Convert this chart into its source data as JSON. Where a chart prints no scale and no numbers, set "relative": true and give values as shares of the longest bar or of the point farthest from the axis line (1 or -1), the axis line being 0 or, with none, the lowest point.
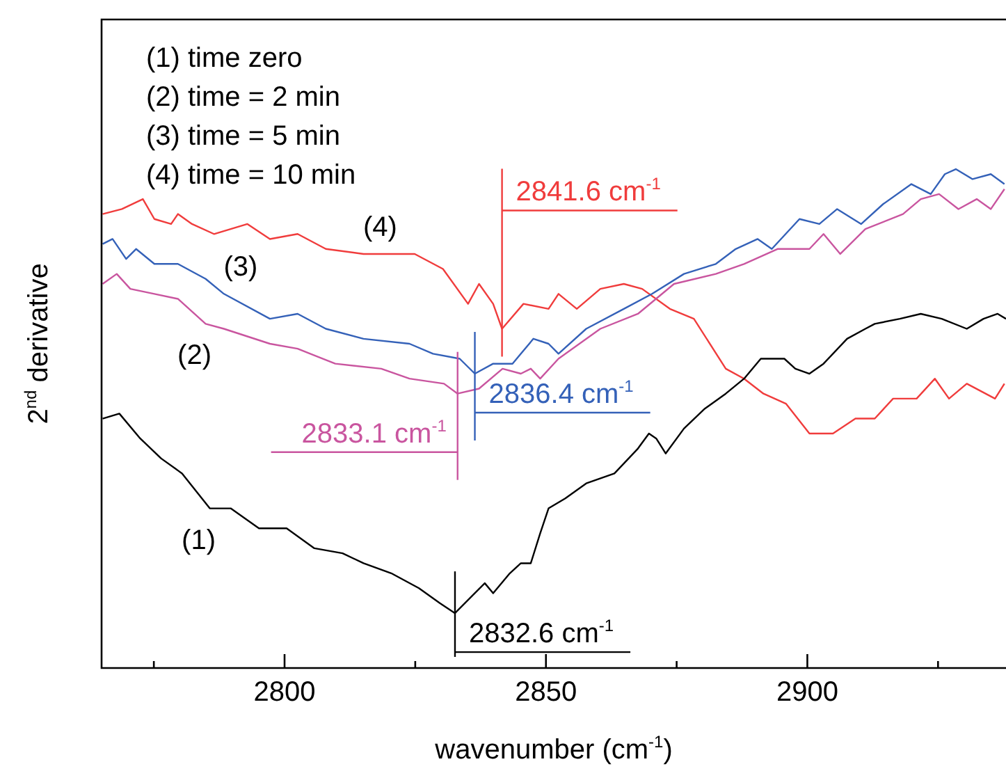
{
  "chart_data": {
    "type": "line",
    "relative": true,
    "xlabel": "wavenumber (cm$^{-1}$)",
    "ylabel": "2$^{nd}$ derivative",
    "xlim": [
      2765,
      2938
    ],
    "xticks": [
      {
        "value": 2775,
        "label": null
      },
      2800,
      {
        "value": 2825,
        "label": null
      },
      2850,
      {
        "value": 2875,
        "label": null
      },
      2900,
      {
        "value": 2925,
        "label": null
      }
    ],
    "series": [
      {
        "name": "(1)",
        "color": "#000000",
        "x": [
          2765.2,
          2768.4,
          2772.4,
          2776.4,
          2780.4,
          2785.7,
          2789.7,
          2795.1,
          2800.4,
          2805.7,
          2811.1,
          2815.1,
          2820.4,
          2825.7,
          2829.7,
          2832.6,
          2836.4,
          2838.3,
          2839.9,
          2843.1,
          2845.2,
          2847.1,
          2848.9,
          2850.5,
          2853.7,
          2857.7,
          2863.1,
          2867.6,
          2869.7,
          2871.1,
          2872.9,
          2876.4,
          2880.4,
          2884.4,
          2887.9,
          2891.1,
          2895.6,
          2897.7,
          2900.4,
          2903.1,
          2907.6,
          2911.1,
          2912.9,
          2917.7,
          2921.7,
          2925.7,
          2930.5,
          2933.7,
          2936.4,
          2938
        ],
        "values": [
          0.5,
          0.51,
          0.46,
          0.42,
          0.39,
          0.32,
          0.32,
          0.28,
          0.28,
          0.24,
          0.23,
          0.21,
          0.19,
          0.16,
          0.13,
          0.11,
          0.15,
          0.17,
          0.15,
          0.19,
          0.21,
          0.21,
          0.27,
          0.32,
          0.34,
          0.37,
          0.39,
          0.44,
          0.47,
          0.46,
          0.43,
          0.48,
          0.52,
          0.55,
          0.58,
          0.62,
          0.62,
          0.6,
          0.59,
          0.61,
          0.66,
          0.68,
          0.69,
          0.7,
          0.71,
          0.7,
          0.68,
          0.7,
          0.71,
          0.7
        ]
      },
      {
        "name": "(2)",
        "color": "#c9559f",
        "x": [
          2765.2,
          2767.9,
          2770.5,
          2775.1,
          2779.6,
          2784.9,
          2788.4,
          2797.2,
          2802.5,
          2809.7,
          2818.5,
          2823.9,
          2830.5,
          2833.1,
          2837.2,
          2841.7,
          2845.2,
          2847.1,
          2848.9,
          2852.4,
          2860.4,
          2867.6,
          2874.5,
          2882.5,
          2887.9,
          2894.3,
          2900.4,
          2903.1,
          2906.3,
          2911.1,
          2918.3,
          2921.7,
          2925.2,
          2928.9,
          2932.4,
          2935.1,
          2937.7
        ],
        "values": [
          0.77,
          0.79,
          0.76,
          0.75,
          0.74,
          0.69,
          0.68,
          0.65,
          0.64,
          0.61,
          0.6,
          0.58,
          0.57,
          0.55,
          0.56,
          0.6,
          0.59,
          0.6,
          0.58,
          0.62,
          0.68,
          0.71,
          0.77,
          0.79,
          0.81,
          0.84,
          0.84,
          0.87,
          0.83,
          0.88,
          0.91,
          0.94,
          0.95,
          0.92,
          0.94,
          0.92,
          0.96
        ]
      },
      {
        "name": "(3)",
        "color": "#3461b8",
        "x": [
          2765.2,
          2767.1,
          2769.7,
          2771.6,
          2775.1,
          2779.6,
          2784.9,
          2788.4,
          2797.2,
          2802.5,
          2807.9,
          2815.1,
          2823.9,
          2828.4,
          2833.5,
          2836.4,
          2839.9,
          2843.6,
          2847.6,
          2850.5,
          2852.4,
          2857.7,
          2864.9,
          2870.3,
          2876.4,
          2882.5,
          2886.3,
          2890.5,
          2893.2,
          2898.5,
          2902.3,
          2905.7,
          2910.3,
          2914.5,
          2919.9,
          2923.6,
          2926.3,
          2928.4,
          2931.6,
          2935.1,
          2937.7
        ],
        "values": [
          0.85,
          0.86,
          0.82,
          0.84,
          0.81,
          0.81,
          0.78,
          0.75,
          0.7,
          0.71,
          0.68,
          0.66,
          0.65,
          0.63,
          0.62,
          0.59,
          0.61,
          0.61,
          0.66,
          0.65,
          0.63,
          0.68,
          0.72,
          0.75,
          0.79,
          0.81,
          0.84,
          0.86,
          0.84,
          0.9,
          0.89,
          0.92,
          0.89,
          0.93,
          0.97,
          0.95,
          0.99,
          1.0,
          0.98,
          0.99,
          0.97
        ]
      },
      {
        "name": "(4)",
        "color": "#f03c3c",
        "x": [
          2765.2,
          2768.9,
          2772.9,
          2775.1,
          2778.3,
          2779.6,
          2782.3,
          2786.5,
          2792.9,
          2797.2,
          2802.5,
          2807.9,
          2815.1,
          2824.9,
          2830.3,
          2835.1,
          2837.2,
          2839.9,
          2841.6,
          2845.7,
          2850.5,
          2852.4,
          2855.9,
          2860.4,
          2864.9,
          2868.4,
          2873.7,
          2878.3,
          2884.4,
          2887.9,
          2891.6,
          2895.9,
          2900.4,
          2904.9,
          2909.2,
          2912.9,
          2916.4,
          2920.9,
          2924.4,
          2927.1,
          2930.5,
          2935.9,
          2937.7
        ],
        "values": [
          0.91,
          0.92,
          0.94,
          0.9,
          0.89,
          0.91,
          0.89,
          0.87,
          0.89,
          0.86,
          0.87,
          0.84,
          0.83,
          0.83,
          0.8,
          0.73,
          0.77,
          0.73,
          0.68,
          0.73,
          0.72,
          0.75,
          0.72,
          0.76,
          0.77,
          0.76,
          0.72,
          0.7,
          0.6,
          0.58,
          0.55,
          0.53,
          0.47,
          0.47,
          0.5,
          0.5,
          0.54,
          0.54,
          0.58,
          0.54,
          0.57,
          0.54,
          0.57
        ]
      }
    ],
    "annotations": [
      "(1) time zero",
      "(2) time = 2 min",
      "(3) time = 5 min",
      "(4) time = 10 min"
    ],
    "ref_lines": [
      {
        "axis": "x",
        "value": 2841.6,
        "label": "2841.6 cm$^{-1}$",
        "color": "#f03c3c"
      },
      {
        "axis": "x",
        "value": 2836.4,
        "label": "2836.4 cm$^{-1}$",
        "color": "#3461b8"
      },
      {
        "axis": "x",
        "value": 2833.1,
        "label": "2833.1 cm$^{-1}$",
        "color": "#c9559f"
      },
      {
        "axis": "x",
        "value": 2832.6,
        "label": "2832.6 cm$^{-1}$",
        "color": "#000000"
      }
    ]
  }
}
